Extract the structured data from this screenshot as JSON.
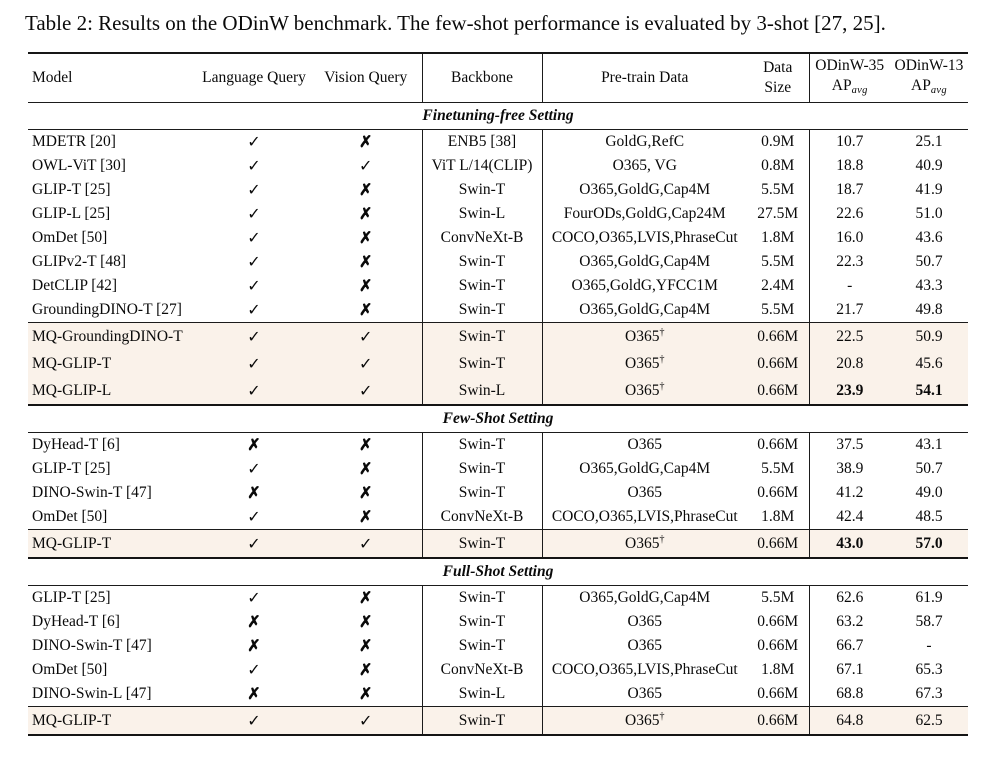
{
  "caption": "Table 2: Results on the ODinW benchmark. The few-shot performance is evaluated by 3-shot [27, 25].",
  "header": {
    "model": "Model",
    "language_query": "Language Query",
    "vision_query": "Vision Query",
    "backbone": "Backbone",
    "pretrain": "Pre-train Data",
    "data_size_line1": "Data",
    "data_size_line2": "Size",
    "odinw35": "ODinW-35",
    "odinw13": "ODinW-13",
    "ap": "AP",
    "ap_sub": "avg"
  },
  "symbols": {
    "check": "✓",
    "cross": "✗",
    "dagger": "†"
  },
  "colors": {
    "highlight_row": "#faf2ea",
    "rule": "#1b1b1b",
    "text": "#0a0a0a"
  },
  "sections": [
    {
      "title": "Finetuning-free Setting",
      "groups": [
        {
          "highlight": false,
          "rows": [
            {
              "model": "MDETR [20]",
              "lang": true,
              "vision": false,
              "backbone": "ENB5 [38]",
              "pretrain": "GoldG,RefC",
              "dagger": false,
              "size": "0.9M",
              "ap35": "10.7",
              "ap13": "25.1",
              "bold35": false,
              "bold13": false
            },
            {
              "model": "OWL-ViT [30]",
              "lang": true,
              "vision": true,
              "backbone": "ViT L/14(CLIP)",
              "pretrain": "O365, VG",
              "dagger": false,
              "size": "0.8M",
              "ap35": "18.8",
              "ap13": "40.9",
              "bold35": false,
              "bold13": false
            },
            {
              "model": "GLIP-T [25]",
              "lang": true,
              "vision": false,
              "backbone": "Swin-T",
              "pretrain": "O365,GoldG,Cap4M",
              "dagger": false,
              "size": "5.5M",
              "ap35": "18.7",
              "ap13": "41.9",
              "bold35": false,
              "bold13": false
            },
            {
              "model": "GLIP-L [25]",
              "lang": true,
              "vision": false,
              "backbone": "Swin-L",
              "pretrain": "FourODs,GoldG,Cap24M",
              "dagger": false,
              "size": "27.5M",
              "ap35": "22.6",
              "ap13": "51.0",
              "bold35": false,
              "bold13": false
            },
            {
              "model": "OmDet [50]",
              "lang": true,
              "vision": false,
              "backbone": "ConvNeXt-B",
              "pretrain": "COCO,O365,LVIS,PhraseCut",
              "dagger": false,
              "size": "1.8M",
              "ap35": "16.0",
              "ap13": "43.6",
              "bold35": false,
              "bold13": false
            },
            {
              "model": "GLIPv2-T [48]",
              "lang": true,
              "vision": false,
              "backbone": "Swin-T",
              "pretrain": "O365,GoldG,Cap4M",
              "dagger": false,
              "size": "5.5M",
              "ap35": "22.3",
              "ap13": "50.7",
              "bold35": false,
              "bold13": false
            },
            {
              "model": "DetCLIP [42]",
              "lang": true,
              "vision": false,
              "backbone": "Swin-T",
              "pretrain": "O365,GoldG,YFCC1M",
              "dagger": false,
              "size": "2.4M",
              "ap35": "-",
              "ap13": "43.3",
              "bold35": false,
              "bold13": false
            },
            {
              "model": "GroundingDINO-T [27]",
              "lang": true,
              "vision": false,
              "backbone": "Swin-T",
              "pretrain": "O365,GoldG,Cap4M",
              "dagger": false,
              "size": "5.5M",
              "ap35": "21.7",
              "ap13": "49.8",
              "bold35": false,
              "bold13": false
            }
          ]
        },
        {
          "highlight": true,
          "rows": [
            {
              "model": "MQ-GroundingDINO-T",
              "lang": true,
              "vision": true,
              "backbone": "Swin-T",
              "pretrain": "O365",
              "dagger": true,
              "size": "0.66M",
              "ap35": "22.5",
              "ap13": "50.9",
              "bold35": false,
              "bold13": false
            },
            {
              "model": "MQ-GLIP-T",
              "lang": true,
              "vision": true,
              "backbone": "Swin-T",
              "pretrain": "O365",
              "dagger": true,
              "size": "0.66M",
              "ap35": "20.8",
              "ap13": "45.6",
              "bold35": false,
              "bold13": false
            },
            {
              "model": "MQ-GLIP-L",
              "lang": true,
              "vision": true,
              "backbone": "Swin-L",
              "pretrain": "O365",
              "dagger": true,
              "size": "0.66M",
              "ap35": "23.9",
              "ap13": "54.1",
              "bold35": true,
              "bold13": true
            }
          ]
        }
      ]
    },
    {
      "title": "Few-Shot Setting",
      "groups": [
        {
          "highlight": false,
          "rows": [
            {
              "model": "DyHead-T [6]",
              "lang": false,
              "vision": false,
              "backbone": "Swin-T",
              "pretrain": "O365",
              "dagger": false,
              "size": "0.66M",
              "ap35": "37.5",
              "ap13": "43.1",
              "bold35": false,
              "bold13": false
            },
            {
              "model": "GLIP-T [25]",
              "lang": true,
              "vision": false,
              "backbone": "Swin-T",
              "pretrain": "O365,GoldG,Cap4M",
              "dagger": false,
              "size": "5.5M",
              "ap35": "38.9",
              "ap13": "50.7",
              "bold35": false,
              "bold13": false
            },
            {
              "model": "DINO-Swin-T [47]",
              "lang": false,
              "vision": false,
              "backbone": "Swin-T",
              "pretrain": "O365",
              "dagger": false,
              "size": "0.66M",
              "ap35": "41.2",
              "ap13": "49.0",
              "bold35": false,
              "bold13": false
            },
            {
              "model": "OmDet [50]",
              "lang": true,
              "vision": false,
              "backbone": "ConvNeXt-B",
              "pretrain": "COCO,O365,LVIS,PhraseCut",
              "dagger": false,
              "size": "1.8M",
              "ap35": "42.4",
              "ap13": "48.5",
              "bold35": false,
              "bold13": false
            }
          ]
        },
        {
          "highlight": true,
          "rows": [
            {
              "model": "MQ-GLIP-T",
              "lang": true,
              "vision": true,
              "backbone": "Swin-T",
              "pretrain": "O365",
              "dagger": true,
              "size": "0.66M",
              "ap35": "43.0",
              "ap13": "57.0",
              "bold35": true,
              "bold13": true
            }
          ]
        }
      ]
    },
    {
      "title": "Full-Shot Setting",
      "groups": [
        {
          "highlight": false,
          "rows": [
            {
              "model": "GLIP-T [25]",
              "lang": true,
              "vision": false,
              "backbone": "Swin-T",
              "pretrain": "O365,GoldG,Cap4M",
              "dagger": false,
              "size": "5.5M",
              "ap35": "62.6",
              "ap13": "61.9",
              "bold35": false,
              "bold13": false
            },
            {
              "model": "DyHead-T [6]",
              "lang": false,
              "vision": false,
              "backbone": "Swin-T",
              "pretrain": "O365",
              "dagger": false,
              "size": "0.66M",
              "ap35": "63.2",
              "ap13": "58.7",
              "bold35": false,
              "bold13": false
            },
            {
              "model": "DINO-Swin-T [47]",
              "lang": false,
              "vision": false,
              "backbone": "Swin-T",
              "pretrain": "O365",
              "dagger": false,
              "size": "0.66M",
              "ap35": "66.7",
              "ap13": "-",
              "bold35": false,
              "bold13": false
            },
            {
              "model": "OmDet [50]",
              "lang": true,
              "vision": false,
              "backbone": "ConvNeXt-B",
              "pretrain": "COCO,O365,LVIS,PhraseCut",
              "dagger": false,
              "size": "1.8M",
              "ap35": "67.1",
              "ap13": "65.3",
              "bold35": false,
              "bold13": false
            },
            {
              "model": "DINO-Swin-L [47]",
              "lang": false,
              "vision": false,
              "backbone": "Swin-L",
              "pretrain": "O365",
              "dagger": false,
              "size": "0.66M",
              "ap35": "68.8",
              "ap13": "67.3",
              "bold35": false,
              "bold13": false
            }
          ]
        },
        {
          "highlight": true,
          "rows": [
            {
              "model": "MQ-GLIP-T",
              "lang": true,
              "vision": true,
              "backbone": "Swin-T",
              "pretrain": "O365",
              "dagger": true,
              "size": "0.66M",
              "ap35": "64.8",
              "ap13": "62.5",
              "bold35": false,
              "bold13": false
            }
          ]
        }
      ]
    }
  ]
}
